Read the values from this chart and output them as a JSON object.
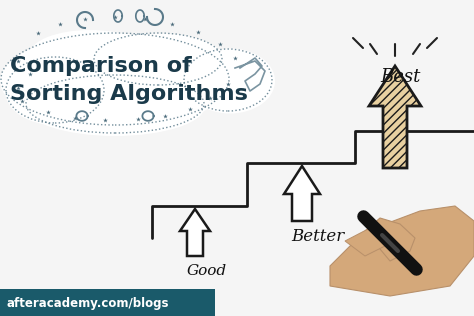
{
  "title_line1": "Comparison of",
  "title_line2": "Sorting Algorithms",
  "label_good": "Good",
  "label_better": "Better",
  "label_best": "Best",
  "watermark": "afteracademy.com/blogs",
  "bg_color": "#f5f5f5",
  "title_color": "#1a3a4a",
  "label_color": "#111111",
  "stair_color": "#1a1a1a",
  "arrow_color": "#1a1a1a",
  "watermark_bg": "#1a5a6a",
  "watermark_text_color": "#ffffff",
  "banner_border": "#5a7a8a",
  "star_color": "#4a6a7a",
  "cloud_fill": "#ffffff",
  "hatch_arrow_fill": "#e8d0a0",
  "hand_color": "#d4a87a",
  "pen_color": "#111111",
  "shine_color": "#222222"
}
